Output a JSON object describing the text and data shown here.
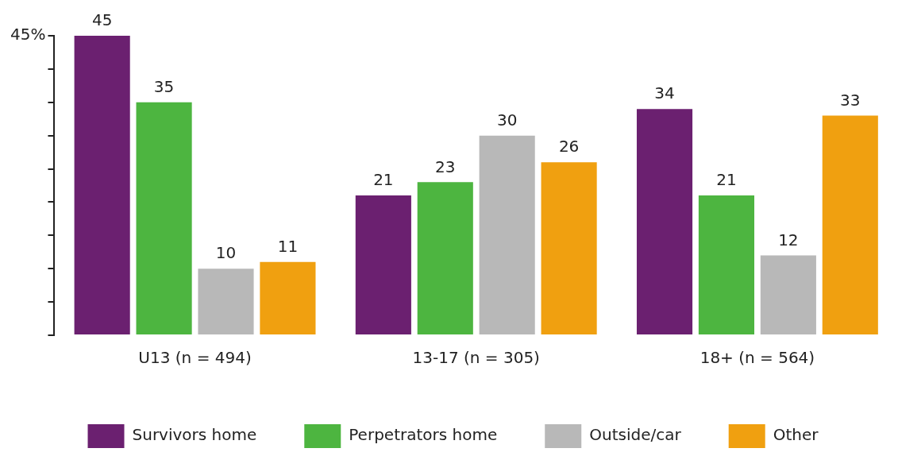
{
  "chart_data": {
    "type": "bar",
    "categories": [
      "U13 (n = 494)",
      "13-17 (n = 305)",
      "18+ (n = 564)"
    ],
    "series": [
      {
        "name": "Survivors home",
        "color": "#6b2070",
        "values": [
          45,
          21,
          34
        ]
      },
      {
        "name": "Perpetrators home",
        "color": "#4db540",
        "values": [
          35,
          23,
          21
        ]
      },
      {
        "name": "Outside/car",
        "color": "#b8b8b8",
        "values": [
          10,
          30,
          12
        ]
      },
      {
        "name": "Other",
        "color": "#f0a010",
        "values": [
          11,
          26,
          33
        ]
      }
    ],
    "ylim": [
      0,
      45
    ],
    "yticks": [
      {
        "value": 0,
        "label": null
      },
      {
        "value": 5,
        "label": null
      },
      {
        "value": 10,
        "label": null
      },
      {
        "value": 15,
        "label": null
      },
      {
        "value": 20,
        "label": null
      },
      {
        "value": 25,
        "label": null
      },
      {
        "value": 30,
        "label": null
      },
      {
        "value": 35,
        "label": null
      },
      {
        "value": 40,
        "label": null
      },
      {
        "value": 45,
        "label": "45%"
      }
    ],
    "data_labels": true,
    "grid": false,
    "legend": "bottom"
  }
}
